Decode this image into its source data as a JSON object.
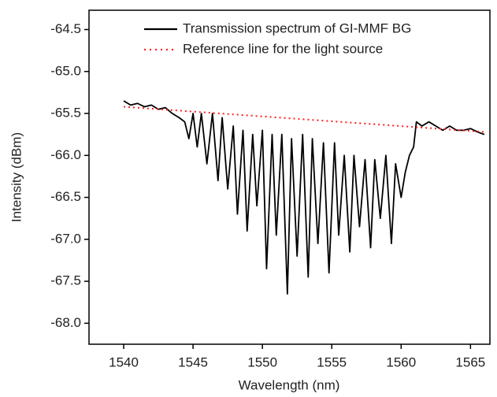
{
  "chart_data": {
    "type": "line",
    "x_label": "Wavelength (nm)",
    "y_label": "Intensity (dBm)",
    "xlim": [
      1537.5,
      1566.4
    ],
    "ylim": [
      -68.25,
      -64.27
    ],
    "xticks": [
      1540,
      1545,
      1550,
      1555,
      1560,
      1565
    ],
    "yticks": [
      -64.5,
      {
        "value": -65.0,
        "label": "-65.0"
      },
      -65.5,
      {
        "value": -66.0,
        "label": "-66.0"
      },
      -66.5,
      {
        "value": -67.0,
        "label": "-67.0"
      },
      -67.5,
      {
        "value": -68.0,
        "label": "-68.0"
      }
    ],
    "series": [
      {
        "name": "Transmission spectrum of GI-MMF BG",
        "color": "#000000",
        "style": "solid",
        "x": [
          1540,
          1540.5,
          1541,
          1541.5,
          1542,
          1542.5,
          1543,
          1543.5,
          1544,
          1544.4,
          1544.7,
          1545.0,
          1545.3,
          1545.6,
          1546.0,
          1546.4,
          1546.8,
          1547.1,
          1547.5,
          1547.9,
          1548.2,
          1548.6,
          1548.9,
          1549.3,
          1549.6,
          1550.0,
          1550.3,
          1550.7,
          1551.0,
          1551.4,
          1551.8,
          1552.1,
          1552.5,
          1552.9,
          1553.3,
          1553.6,
          1554.0,
          1554.4,
          1554.8,
          1555.2,
          1555.5,
          1555.9,
          1556.3,
          1556.6,
          1557.0,
          1557.4,
          1557.8,
          1558.1,
          1558.5,
          1558.9,
          1559.3,
          1559.6,
          1560.0,
          1560.3,
          1560.6,
          1560.9,
          1561.1,
          1561.5,
          1562,
          1562.5,
          1563,
          1563.5,
          1564,
          1564.5,
          1565,
          1565.5,
          1566
        ],
        "values": [
          -65.35,
          -65.4,
          -65.38,
          -65.42,
          -65.4,
          -65.45,
          -65.43,
          -65.5,
          -65.55,
          -65.6,
          -65.8,
          -65.5,
          -65.9,
          -65.5,
          -66.1,
          -65.5,
          -66.3,
          -65.55,
          -66.4,
          -65.65,
          -66.7,
          -65.7,
          -66.9,
          -65.75,
          -66.6,
          -65.7,
          -67.35,
          -65.75,
          -66.95,
          -65.75,
          -67.65,
          -65.8,
          -67.2,
          -65.75,
          -67.45,
          -65.8,
          -67.05,
          -65.85,
          -67.4,
          -65.85,
          -66.95,
          -66.0,
          -67.15,
          -66.0,
          -66.85,
          -66.05,
          -67.1,
          -66.05,
          -66.75,
          -66.0,
          -67.05,
          -66.1,
          -66.5,
          -66.2,
          -66.0,
          -65.9,
          -65.6,
          -65.65,
          -65.6,
          -65.65,
          -65.7,
          -65.65,
          -65.7,
          -65.7,
          -65.68,
          -65.72,
          -65.75
        ]
      },
      {
        "name": "Reference line for the light source",
        "color": "#ff2020",
        "style": "dotted",
        "x": [
          1540,
          1566
        ],
        "values": [
          -65.42,
          -65.72
        ]
      }
    ]
  }
}
